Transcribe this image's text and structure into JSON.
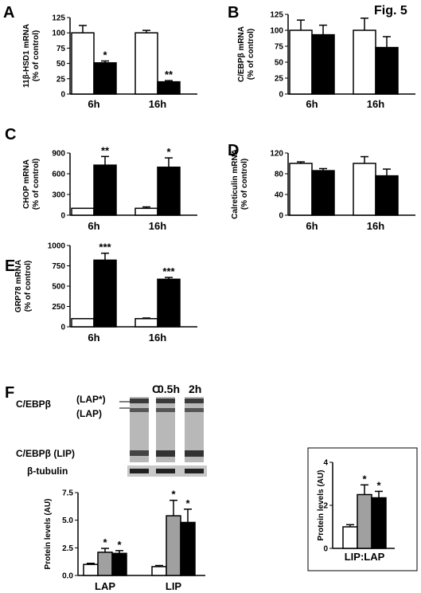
{
  "figure_label": "Fig. 5",
  "colors": {
    "control": "#ffffff",
    "treated": "#000000",
    "mid": "#a0a0a0"
  },
  "panels": [
    {
      "letter": "A",
      "ylabel": [
        "11β-HSD1 mRNA",
        "(% of control)"
      ],
      "ylim": [
        0,
        125
      ],
      "yticks": [
        0,
        25,
        50,
        75,
        100,
        125
      ]
    },
    {
      "letter": "B",
      "ylabel": [
        "C/EBPβ mRNA",
        "(% of control)"
      ],
      "ylim": [
        0,
        125
      ],
      "yticks": [
        0,
        25,
        50,
        75,
        100,
        125
      ]
    },
    {
      "letter": "C",
      "ylabel": [
        "CHOP mRNA",
        "(% of control)"
      ],
      "ylim": [
        0,
        900
      ],
      "yticks": [
        0,
        300,
        600,
        900
      ]
    },
    {
      "letter": "D",
      "ylabel": [
        "Calreticulin mRNA",
        "(% of control)"
      ],
      "ylim": [
        0,
        120
      ],
      "yticks": [
        0,
        40,
        80,
        120
      ]
    },
    {
      "letter": "E",
      "ylabel": [
        "GRP78 mRNA",
        "(% of control)"
      ],
      "ylim": [
        0,
        1000
      ],
      "yticks": [
        0,
        250,
        500,
        750,
        1000
      ]
    },
    {
      "letter": "F",
      "ylabel": [
        "Protein levels (AU)"
      ],
      "ylim": [
        0,
        7.5
      ],
      "yticks": [
        0.0,
        2.5,
        5.0,
        7.5
      ]
    },
    {
      "letter": "",
      "ylabel": [
        "Protein levels (AU)"
      ],
      "ylim": [
        0,
        4
      ],
      "yticks": [
        0,
        2,
        4
      ]
    }
  ],
  "blot": {
    "lanes": [
      "C",
      "0.5h",
      "2h"
    ],
    "labels": [
      "C/EBPβ",
      "(LAP*)",
      "(LAP)",
      "C/EBPβ (LIP)",
      "β-tubulin"
    ]
  },
  "chart_data": [
    {
      "type": "bar",
      "panel": "A",
      "categories": [
        "6h",
        "16h"
      ],
      "series": [
        {
          "values": [
            100,
            100
          ],
          "errors": [
            12,
            4
          ]
        },
        {
          "values": [
            51,
            20
          ],
          "errors": [
            3,
            2
          ]
        }
      ],
      "annotations": [
        [
          "",
          "*"
        ],
        [
          "",
          "**"
        ]
      ],
      "ylim": [
        0,
        125
      ]
    },
    {
      "type": "bar",
      "panel": "B",
      "categories": [
        "6h",
        "16h"
      ],
      "series": [
        {
          "values": [
            100,
            100
          ],
          "errors": [
            16,
            19
          ]
        },
        {
          "values": [
            93,
            73
          ],
          "errors": [
            15,
            17
          ]
        }
      ],
      "annotations": [
        [
          "",
          ""
        ],
        [
          "",
          ""
        ]
      ],
      "ylim": [
        0,
        125
      ]
    },
    {
      "type": "bar",
      "panel": "C",
      "categories": [
        "6h",
        "16h"
      ],
      "series": [
        {
          "values": [
            100,
            100
          ],
          "errors": [
            0,
            20
          ]
        },
        {
          "values": [
            725,
            695
          ],
          "errors": [
            125,
            135
          ]
        }
      ],
      "annotations": [
        [
          "",
          "**"
        ],
        [
          "",
          "*"
        ]
      ],
      "ylim": [
        0,
        900
      ]
    },
    {
      "type": "bar",
      "panel": "D",
      "categories": [
        "6h",
        "16h"
      ],
      "series": [
        {
          "values": [
            100,
            100
          ],
          "errors": [
            3,
            13
          ]
        },
        {
          "values": [
            86,
            76
          ],
          "errors": [
            4,
            13
          ]
        }
      ],
      "annotations": [
        [
          "",
          ""
        ],
        [
          "",
          ""
        ]
      ],
      "ylim": [
        0,
        120
      ]
    },
    {
      "type": "bar",
      "panel": "E",
      "categories": [
        "6h",
        "16h"
      ],
      "series": [
        {
          "values": [
            100,
            100
          ],
          "errors": [
            0,
            8
          ]
        },
        {
          "values": [
            820,
            585
          ],
          "errors": [
            85,
            22
          ]
        }
      ],
      "annotations": [
        [
          "",
          "***"
        ],
        [
          "",
          "***"
        ]
      ],
      "ylim": [
        0,
        1000
      ]
    },
    {
      "type": "bar",
      "panel": "F",
      "categories": [
        "LAP",
        "LIP"
      ],
      "series": [
        {
          "values": [
            1.0,
            0.8
          ],
          "errors": [
            0.1,
            0.1
          ]
        },
        {
          "values": [
            2.1,
            5.4
          ],
          "errors": [
            0.35,
            1.4
          ]
        },
        {
          "values": [
            2.0,
            4.8
          ],
          "errors": [
            0.25,
            1.2
          ]
        }
      ],
      "annotations": [
        [
          "",
          "*",
          "*"
        ],
        [
          "",
          "*",
          "*"
        ]
      ],
      "ylim": [
        0,
        7.5
      ]
    },
    {
      "type": "bar",
      "panel": "F-inset",
      "categories": [
        "LIP:LAP"
      ],
      "series": [
        {
          "values": [
            1.0
          ],
          "errors": [
            0.1
          ]
        },
        {
          "values": [
            2.5
          ],
          "errors": [
            0.45
          ]
        },
        {
          "values": [
            2.35
          ],
          "errors": [
            0.3
          ]
        }
      ],
      "annotations": [
        [
          "",
          "*",
          "*"
        ]
      ],
      "ylim": [
        0,
        4
      ]
    }
  ]
}
